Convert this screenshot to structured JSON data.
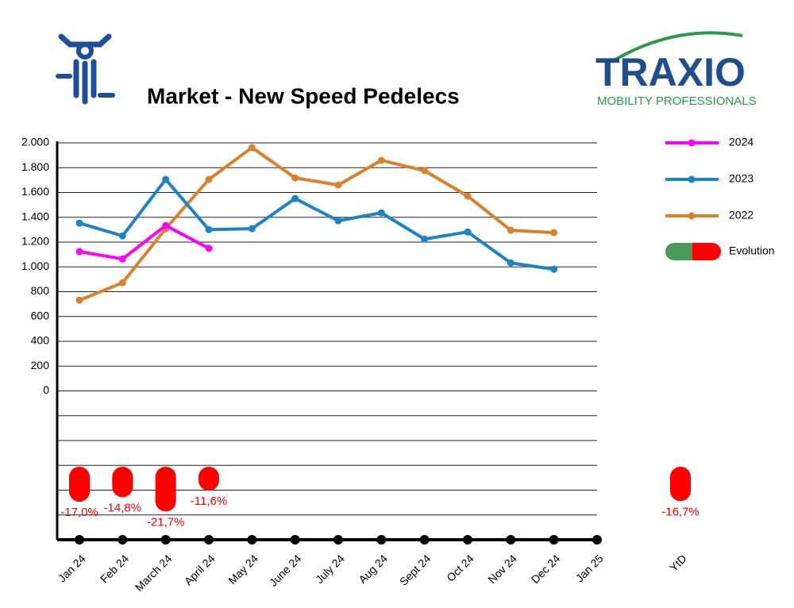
{
  "chart_data": {
    "type": "line",
    "title": "Market - New Speed Pedelecs",
    "brand": {
      "name": "TRAXIO",
      "tagline": "MOBILITY PROFESSIONALS"
    },
    "categories": [
      "Jan 24",
      "Feb 24",
      "March 24",
      "April 24",
      "May 24",
      "June 24",
      "July 24",
      "Aug 24",
      "Sept 24",
      "Oct 24",
      "Nov 24",
      "Dec 24",
      "Jan 25",
      "YtD"
    ],
    "series": [
      {
        "name": "2024",
        "color": "#ff00ff",
        "values": [
          1123,
          1064,
          1333,
          1150,
          null,
          null,
          null,
          null,
          null,
          null,
          null,
          null,
          null,
          null
        ]
      },
      {
        "name": "2023",
        "color": "#1a84c7",
        "values": [
          1353,
          1250,
          1705,
          1301,
          1308,
          1551,
          1372,
          1436,
          1224,
          1282,
          1032,
          981,
          null,
          null
        ]
      },
      {
        "name": "2022",
        "color": "#d9822b",
        "values": [
          731,
          872,
          1308,
          1705,
          1962,
          1718,
          1660,
          1859,
          1776,
          1571,
          1295,
          1276,
          null,
          null
        ]
      }
    ],
    "evolution": {
      "name": "Evolution",
      "positive_color": "#4a9a5a",
      "negative_color": "#ff0000",
      "values": [
        -17.0,
        -14.8,
        -21.7,
        -11.6,
        null,
        null,
        null,
        null,
        null,
        null,
        null,
        null,
        null,
        -16.7
      ],
      "value_labels": [
        "-17,0%",
        "-14,8%",
        "-21,7%",
        "-11,6%",
        null,
        null,
        null,
        null,
        null,
        null,
        null,
        null,
        null,
        "-16,7%"
      ]
    },
    "ylim": [
      -1200,
      2000
    ],
    "yticks": [
      {
        "value": -1200,
        "label": null
      },
      {
        "value": -1000,
        "label": null
      },
      {
        "value": -800,
        "label": null
      },
      {
        "value": -600,
        "label": null
      },
      {
        "value": -400,
        "label": null
      },
      {
        "value": -200,
        "label": null
      },
      0,
      200,
      400,
      600,
      800,
      {
        "value": 1000,
        "label": "1.000"
      },
      {
        "value": 1200,
        "label": "1.200"
      },
      {
        "value": 1400,
        "label": "1.400"
      },
      {
        "value": 1600,
        "label": "1.600"
      },
      {
        "value": 1800,
        "label": "1.800"
      },
      {
        "value": 2000,
        "label": "2.000"
      }
    ],
    "grid": true
  }
}
